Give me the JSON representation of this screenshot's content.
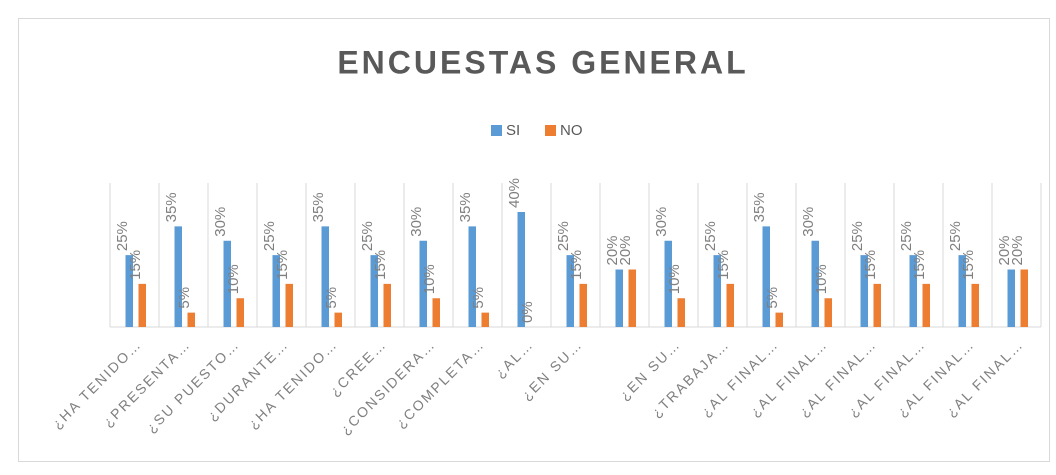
{
  "chart_data": {
    "type": "bar",
    "title": "ENCUESTAS GENERAL",
    "categories": [
      "¿HA TENIDO…",
      "¿PRESENTA…",
      "¿SU PUESTO…",
      "¿DURANTE…",
      "¿HA TENIDO…",
      "¿CREE…",
      "¿CONSIDERA…",
      "¿COMPLETA…",
      "¿AL…",
      "¿EN SU…",
      null,
      "¿EN SU…",
      "¿TRABAJA…",
      "¿AL FINAL…",
      "¿AL FINAL…",
      "¿AL FINAL…",
      "¿AL FINAL…",
      "¿AL FINAL…",
      "¿AL FINAL…"
    ],
    "series": [
      {
        "name": "SI",
        "color": "#5b9bd5",
        "values": [
          25,
          35,
          30,
          25,
          35,
          25,
          30,
          35,
          40,
          25,
          20,
          30,
          25,
          35,
          30,
          25,
          25,
          25,
          20
        ],
        "value_labels": [
          "25%",
          "35%",
          "30%",
          "25%",
          "35%",
          "25%",
          "30%",
          "35%",
          "40%",
          "25%",
          "20%",
          "30%",
          "25%",
          "35%",
          "30%",
          "25%",
          "25%",
          "25%",
          "20%"
        ]
      },
      {
        "name": "NO",
        "color": "#ed7d31",
        "values": [
          15,
          5,
          10,
          15,
          5,
          15,
          10,
          5,
          0,
          15,
          20,
          10,
          15,
          5,
          10,
          15,
          15,
          15,
          20
        ],
        "value_labels": [
          "15%",
          "5%",
          "10%",
          "15%",
          "5%",
          "15%",
          "10%",
          "5%",
          "0%",
          "15%",
          "20%",
          "10%",
          "15%",
          "5%",
          "10%",
          "15%",
          "15%",
          "15%",
          "20%"
        ]
      }
    ],
    "legend": "top"
  }
}
